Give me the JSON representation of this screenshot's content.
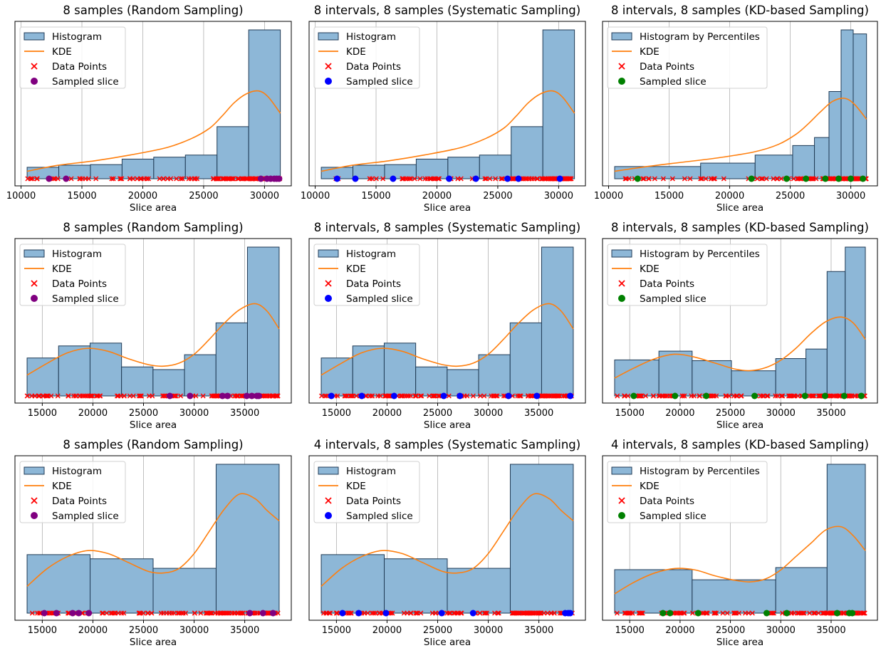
{
  "colors": {
    "bar_fill": "#8db7d7",
    "bar_edge": "#1f3a55",
    "kde": "#ff7f0e",
    "data_points": "#ff0000",
    "grid": "#b0b0b0",
    "random": "#800080",
    "systematic": "#0000ff",
    "kd": "#008000"
  },
  "chart_data": [
    {
      "type": "bar",
      "title": "8 samples (Random Sampling)",
      "xlabel": "Slice area",
      "ylabel": "",
      "xlim": [
        9500,
        32200
      ],
      "xticks": [
        10000,
        15000,
        20000,
        25000,
        30000
      ],
      "grid": "x",
      "legend_position": "top-left",
      "legend": [
        "Histogram",
        "KDE",
        "Data Points",
        "Sampled slice"
      ],
      "bin_edges": [
        10500,
        13100,
        15700,
        18300,
        20900,
        23500,
        26100,
        28700,
        31300
      ],
      "bin_heights": [
        0.077,
        0.091,
        0.095,
        0.132,
        0.145,
        0.159,
        0.35,
        1.0
      ],
      "kde": {
        "x": [
          10500,
          13000,
          16000,
          19000,
          22000,
          24000,
          25500,
          26500,
          27500,
          28500,
          29500,
          30300,
          31300
        ],
        "y": [
          0.05,
          0.09,
          0.12,
          0.16,
          0.21,
          0.27,
          0.34,
          0.42,
          0.51,
          0.57,
          0.59,
          0.55,
          0.44
        ]
      },
      "data_range": [
        10500,
        31300
      ],
      "sampled_color": "random",
      "sampled": [
        12300,
        13700,
        29700,
        30200,
        30500,
        30800,
        31000,
        31200
      ]
    },
    {
      "type": "bar",
      "title": "8 intervals, 8 samples (Systematic Sampling)",
      "xlabel": "Slice area",
      "ylabel": "",
      "xlim": [
        9500,
        32200
      ],
      "xticks": [
        10000,
        15000,
        20000,
        25000,
        30000
      ],
      "grid": "x",
      "legend_position": "top-left",
      "legend": [
        "Histogram",
        "KDE",
        "Data Points",
        "Sampled slice"
      ],
      "bin_edges": [
        10500,
        13100,
        15700,
        18300,
        20900,
        23500,
        26100,
        28700,
        31300
      ],
      "bin_heights": [
        0.077,
        0.091,
        0.095,
        0.132,
        0.145,
        0.159,
        0.35,
        1.0
      ],
      "kde": {
        "x": [
          10500,
          13000,
          16000,
          19000,
          22000,
          24000,
          25500,
          26500,
          27500,
          28500,
          29500,
          30300,
          31300
        ],
        "y": [
          0.05,
          0.09,
          0.12,
          0.16,
          0.21,
          0.27,
          0.34,
          0.42,
          0.51,
          0.57,
          0.59,
          0.55,
          0.44
        ]
      },
      "data_range": [
        10500,
        31300
      ],
      "sampled_color": "systematic",
      "sampled": [
        11800,
        13300,
        16400,
        21000,
        23200,
        25800,
        26700,
        30100
      ]
    },
    {
      "type": "bar",
      "title": "8 intervals, 8 samples (KD-based Sampling)",
      "xlabel": "Slice area",
      "ylabel": "",
      "xlim": [
        9500,
        32200
      ],
      "xticks": [
        10000,
        15000,
        20000,
        25000,
        30000
      ],
      "grid": "x",
      "legend_position": "top-left",
      "legend": [
        "Histogram by Percentiles",
        "KDE",
        "Data Points",
        "Sampled slice"
      ],
      "bin_edges": [
        10500,
        17600,
        22100,
        25200,
        27000,
        28200,
        29200,
        30200,
        31300
      ],
      "bin_heights": [
        0.082,
        0.105,
        0.159,
        0.223,
        0.277,
        0.586,
        1.0,
        0.973
      ],
      "kde": {
        "x": [
          10500,
          13000,
          16000,
          19000,
          22000,
          24000,
          25500,
          26500,
          27500,
          28500,
          29500,
          30300,
          31300
        ],
        "y": [
          0.05,
          0.08,
          0.11,
          0.14,
          0.18,
          0.23,
          0.3,
          0.37,
          0.45,
          0.52,
          0.54,
          0.5,
          0.4
        ]
      },
      "data_range": [
        10500,
        31300
      ],
      "sampled_color": "kd",
      "sampled": [
        12400,
        21800,
        24700,
        26300,
        27900,
        29000,
        30000,
        31000
      ]
    },
    {
      "type": "bar",
      "title": "8 samples (Random Sampling)",
      "xlabel": "Slice area",
      "ylabel": "",
      "xlim": [
        12300,
        39600
      ],
      "xticks": [
        15000,
        20000,
        25000,
        30000,
        35000
      ],
      "grid": "x",
      "legend_position": "top-left",
      "legend": [
        "Histogram",
        "KDE",
        "Data Points",
        "Sampled slice"
      ],
      "bin_edges": [
        13500,
        16610,
        19720,
        22830,
        25940,
        29050,
        32160,
        35270,
        38400
      ],
      "bin_heights": [
        0.255,
        0.336,
        0.355,
        0.195,
        0.177,
        0.277,
        0.491,
        1.0
      ],
      "kde": {
        "x": [
          13500,
          15500,
          17500,
          19500,
          21500,
          23500,
          25500,
          27000,
          28500,
          30000,
          31500,
          33000,
          34500,
          36000,
          37200,
          38400
        ],
        "y": [
          0.14,
          0.22,
          0.29,
          0.32,
          0.3,
          0.25,
          0.21,
          0.2,
          0.22,
          0.28,
          0.38,
          0.49,
          0.58,
          0.62,
          0.57,
          0.45
        ]
      },
      "data_range": [
        13500,
        38400
      ],
      "sampled_color": "random",
      "sampled": [
        27600,
        29600,
        32800,
        33300,
        35200,
        35700,
        36200,
        36400
      ]
    },
    {
      "type": "bar",
      "title": "8 intervals, 8 samples (Systematic Sampling)",
      "xlabel": "Slice area",
      "ylabel": "",
      "xlim": [
        12300,
        39600
      ],
      "xticks": [
        15000,
        20000,
        25000,
        30000,
        35000
      ],
      "grid": "x",
      "legend_position": "top-left",
      "legend": [
        "Histogram",
        "KDE",
        "Data Points",
        "Sampled slice"
      ],
      "bin_edges": [
        13500,
        16610,
        19720,
        22830,
        25940,
        29050,
        32160,
        35270,
        38400
      ],
      "bin_heights": [
        0.255,
        0.336,
        0.355,
        0.195,
        0.177,
        0.277,
        0.491,
        1.0
      ],
      "kde": {
        "x": [
          13500,
          15500,
          17500,
          19500,
          21500,
          23500,
          25500,
          27000,
          28500,
          30000,
          31500,
          33000,
          34500,
          36000,
          37200,
          38400
        ],
        "y": [
          0.14,
          0.22,
          0.29,
          0.32,
          0.3,
          0.25,
          0.21,
          0.2,
          0.22,
          0.28,
          0.38,
          0.49,
          0.58,
          0.62,
          0.57,
          0.45
        ]
      },
      "data_range": [
        13500,
        38400
      ],
      "sampled_color": "systematic",
      "sampled": [
        14500,
        17500,
        20700,
        25600,
        27200,
        32000,
        34800,
        38100
      ]
    },
    {
      "type": "bar",
      "title": "8 intervals, 8 samples (KD-based Sampling)",
      "xlabel": "Slice area",
      "ylabel": "",
      "xlim": [
        12300,
        39600
      ],
      "xticks": [
        15000,
        20000,
        25000,
        30000,
        35000
      ],
      "grid": "x",
      "legend_position": "top-left",
      "legend": [
        "Histogram by Percentiles",
        "KDE",
        "Data Points",
        "Sampled slice"
      ],
      "bin_edges": [
        13500,
        17900,
        21200,
        25100,
        29500,
        32500,
        34600,
        36400,
        38400
      ],
      "bin_heights": [
        0.242,
        0.301,
        0.237,
        0.169,
        0.251,
        0.315,
        0.836,
        1.0
      ],
      "kde": {
        "x": [
          13500,
          15500,
          17500,
          19500,
          21500,
          23500,
          25500,
          27000,
          28500,
          30000,
          31500,
          33000,
          34500,
          36000,
          37200,
          38400
        ],
        "y": [
          0.12,
          0.19,
          0.25,
          0.28,
          0.26,
          0.22,
          0.18,
          0.17,
          0.19,
          0.24,
          0.32,
          0.42,
          0.5,
          0.53,
          0.49,
          0.38
        ]
      },
      "data_range": [
        13500,
        38400
      ],
      "sampled_color": "kd",
      "sampled": [
        15400,
        19500,
        22600,
        27400,
        32400,
        34400,
        36300,
        38000
      ]
    },
    {
      "type": "bar",
      "title": "8 samples (Random Sampling)",
      "xlabel": "Slice area",
      "ylabel": "",
      "xlim": [
        12300,
        39600
      ],
      "xticks": [
        15000,
        20000,
        25000,
        30000,
        35000
      ],
      "grid": "x",
      "legend_position": "top-left",
      "legend": [
        "Histogram",
        "KDE",
        "Data Points",
        "Sampled slice"
      ],
      "bin_edges": [
        13500,
        19725,
        25950,
        32175,
        38400
      ],
      "bin_heights": [
        0.393,
        0.365,
        0.301,
        1.0
      ],
      "kde": {
        "x": [
          13500,
          15500,
          17500,
          19500,
          21500,
          23500,
          25500,
          27000,
          28500,
          30000,
          31500,
          33000,
          34500,
          36000,
          37200,
          38400
        ],
        "y": [
          0.18,
          0.3,
          0.38,
          0.42,
          0.4,
          0.34,
          0.28,
          0.27,
          0.3,
          0.4,
          0.55,
          0.7,
          0.8,
          0.77,
          0.69,
          0.62
        ]
      },
      "data_range": [
        13500,
        38400
      ],
      "sampled_color": "random",
      "sampled": [
        15200,
        16400,
        18000,
        18600,
        19600,
        35500,
        36800,
        37800
      ]
    },
    {
      "type": "bar",
      "title": "4 intervals, 8 samples (Systematic Sampling)",
      "xlabel": "Slice area",
      "ylabel": "",
      "xlim": [
        12300,
        39600
      ],
      "xticks": [
        15000,
        20000,
        25000,
        30000,
        35000
      ],
      "grid": "x",
      "legend_position": "top-left",
      "legend": [
        "Histogram",
        "KDE",
        "Data Points",
        "Sampled slice"
      ],
      "bin_edges": [
        13500,
        19725,
        25950,
        32175,
        38400
      ],
      "bin_heights": [
        0.393,
        0.365,
        0.301,
        1.0
      ],
      "kde": {
        "x": [
          13500,
          15500,
          17500,
          19500,
          21500,
          23500,
          25500,
          27000,
          28500,
          30000,
          31500,
          33000,
          34500,
          36000,
          37200,
          38400
        ],
        "y": [
          0.18,
          0.3,
          0.38,
          0.42,
          0.4,
          0.34,
          0.28,
          0.27,
          0.3,
          0.4,
          0.55,
          0.7,
          0.8,
          0.77,
          0.69,
          0.62
        ]
      },
      "data_range": [
        13500,
        38400
      ],
      "sampled_color": "systematic",
      "sampled": [
        15600,
        17200,
        19900,
        25400,
        28500,
        37600,
        37900,
        38100
      ]
    },
    {
      "type": "bar",
      "title": "4 intervals, 8 samples (KD-based Sampling)",
      "xlabel": "Slice area",
      "ylabel": "",
      "xlim": [
        12300,
        39600
      ],
      "xticks": [
        15000,
        20000,
        25000,
        30000,
        35000
      ],
      "grid": "x",
      "legend_position": "top-left",
      "legend": [
        "Histogram by Percentiles",
        "KDE",
        "Data Points",
        "Sampled slice"
      ],
      "bin_edges": [
        13500,
        21200,
        29500,
        34600,
        38400
      ],
      "bin_heights": [
        0.292,
        0.224,
        0.306,
        1.0
      ],
      "kde": {
        "x": [
          13500,
          15500,
          17500,
          19500,
          21500,
          23500,
          25500,
          27000,
          28500,
          30000,
          31500,
          33000,
          34500,
          36000,
          37200,
          38400
        ],
        "y": [
          0.13,
          0.21,
          0.27,
          0.3,
          0.29,
          0.25,
          0.22,
          0.21,
          0.23,
          0.29,
          0.38,
          0.47,
          0.56,
          0.58,
          0.52,
          0.42
        ]
      },
      "data_range": [
        13500,
        38400
      ],
      "sampled_color": "kd",
      "sampled": [
        18300,
        19000,
        21800,
        28600,
        30600,
        35600,
        36800,
        37100
      ]
    }
  ]
}
